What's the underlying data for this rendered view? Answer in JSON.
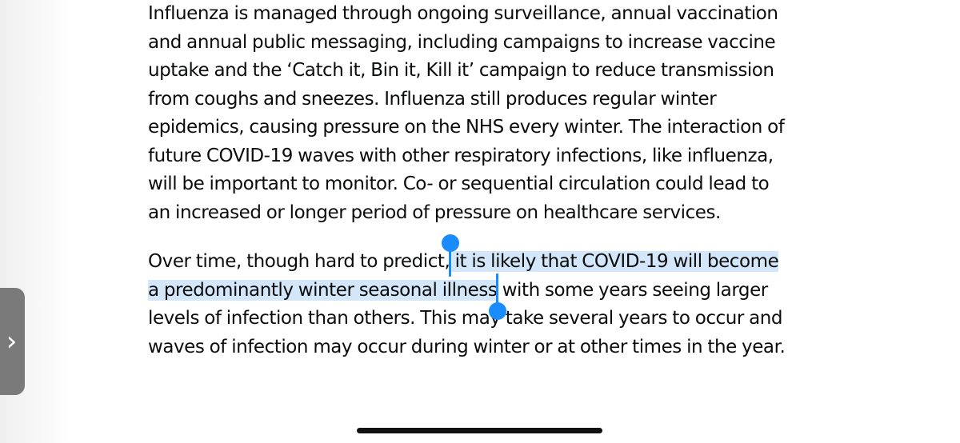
{
  "article": {
    "paragraph1": {
      "lines": [
        "Influenza is managed through ongoing surveillance, annual vaccination",
        "and annual public messaging, including campaigns to increase vaccine",
        "uptake and the ‘Catch it, Bin it, Kill it’ campaign to reduce transmission",
        "from coughs and sneezes. Influenza still produces regular winter",
        "epidemics, causing pressure on the NHS every winter. The interaction of",
        "future COVID-19 waves with other respiratory infections, like influenza,",
        "will be important to monitor. Co- or sequential circulation could lead to",
        "an increased or longer period of pressure on healthcare services."
      ]
    },
    "paragraph2": {
      "line1_before": "Over time, though hard to predict,",
      "line1_selected": " it is likely that COVID-19 will become",
      "line2_selected": "a predominantly winter seasonal illness",
      "line2_after": " with some years seeing larger",
      "line3": "levels of infection than others. This may take several years to occur and",
      "line4": "waves of infection may occur during winter or at other times in the year."
    }
  },
  "selection": {
    "color": "#1a8cff",
    "highlight": "#cfe4fb"
  },
  "side_tab": {
    "icon": "chevron-right-icon",
    "glyph": "›"
  }
}
